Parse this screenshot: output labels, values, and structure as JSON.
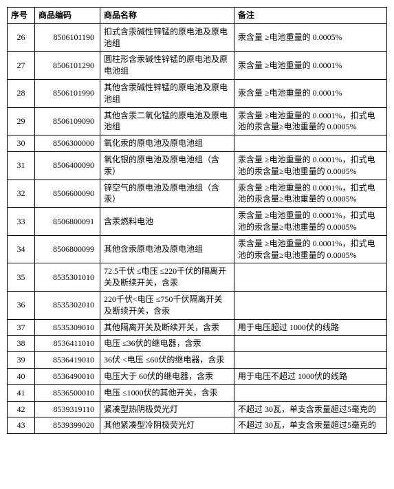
{
  "table": {
    "columns": [
      "序号",
      "商品编码",
      "商品名称",
      "备注"
    ],
    "rows": [
      {
        "seq": "26",
        "code": "8506101190",
        "name": "扣式含汞碱性锌锰的原电池及原电池组",
        "remark": "汞含量 ≥电池重量的 0.0005%"
      },
      {
        "seq": "27",
        "code": "8506101290",
        "name": "圆柱形含汞碱性锌锰的原电池及原电池组",
        "remark": "汞含量 ≥电池重量的 0.0001%"
      },
      {
        "seq": "28",
        "code": "8506101990",
        "name": "其他含汞碱性锌锰的原电池及原电池组",
        "remark": "汞含量 ≥电池重量的 0.0001%"
      },
      {
        "seq": "29",
        "code": "8506109090",
        "name": "其他含汞二氧化锰的原电池及原电池组",
        "remark": "汞含量 ≥电池重量的 0.0001%，扣式电池的汞含量≥电池重量的 0.0005%"
      },
      {
        "seq": "30",
        "code": "8506300000",
        "name": "氧化汞的原电池及原电池组",
        "remark": ""
      },
      {
        "seq": "31",
        "code": "8506400090",
        "name": "氧化银的原电池及原电池组（含汞）",
        "remark": "汞含量 ≥电池重量的 0.0001%，扣式电池的汞含量≥电池重量的 0.0005%"
      },
      {
        "seq": "32",
        "code": "8506600090",
        "name": "锌空气的原电池及原电池组（含汞）",
        "remark": "汞含量 ≥电池重量的 0.0001%，扣式电池的汞含量≥电池重量的 0.0005%"
      },
      {
        "seq": "33",
        "code": "8506800091",
        "name": "含汞燃料电池",
        "remark": "汞含量 ≥电池重量的 0.0001%，扣式电池的汞含量≥电池重量的 0.0005%"
      },
      {
        "seq": "34",
        "code": "8506800099",
        "name": "其他含汞原电池及原电池组",
        "remark": "汞含量 ≥电池重量的 0.0001%，扣式电池的汞含量≥电池重量的 0.0005%"
      },
      {
        "seq": "35",
        "code": "8535301010",
        "name": "72.5千伏 ≤电压 ≤220千伏的隔离开关及断续开关，含汞",
        "remark": ""
      },
      {
        "seq": "36",
        "code": "8535302010",
        "name": "220千伏<电压 ≤750千伏隔离开关及断续开关，含汞",
        "remark": ""
      },
      {
        "seq": "37",
        "code": "8535309010",
        "name": "其他隔离开关及断续开关，含汞",
        "remark": "用于电压超过 1000伏的线路"
      },
      {
        "seq": "38",
        "code": "8536411010",
        "name": "电压 ≤36伏的继电器，含汞",
        "remark": ""
      },
      {
        "seq": "39",
        "code": "8536419010",
        "name": "36伏 <电压 ≤60伏的继电器，含汞",
        "remark": ""
      },
      {
        "seq": "40",
        "code": "8536490010",
        "name": "电压大于 60伏的继电器，含汞",
        "remark": "用于电压不超过 1000伏的线路"
      },
      {
        "seq": "41",
        "code": "8536500010",
        "name": "电压 ≤1000伏的其他开关，含汞",
        "remark": ""
      },
      {
        "seq": "42",
        "code": "8539319110",
        "name": "紧凑型热阴极荧光灯",
        "remark": "不超过 30瓦，单支含汞量超过5毫克的"
      },
      {
        "seq": "43",
        "code": "8539399020",
        "name": "其他紧凑型冷阴极荧光灯",
        "remark": "不超过 30瓦，单支含汞量超过5毫克的"
      }
    ]
  }
}
